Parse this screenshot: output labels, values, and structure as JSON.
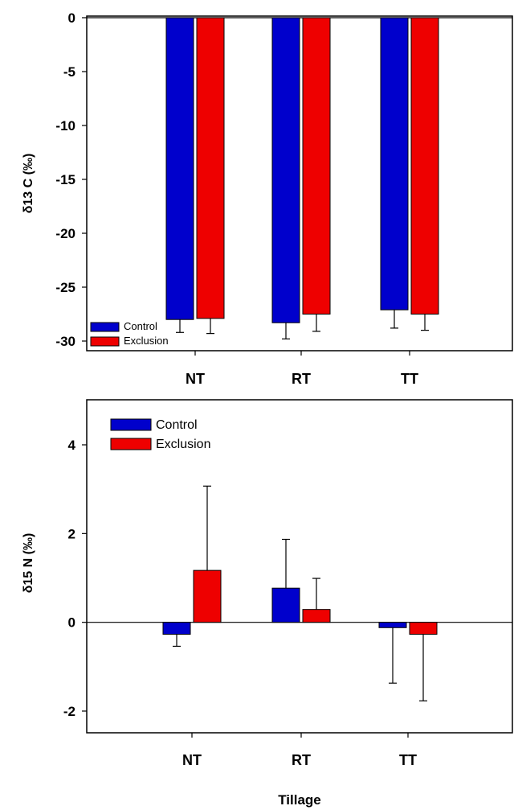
{
  "chart_data": [
    {
      "type": "bar",
      "ylabel": "δ13 C (‰)",
      "xlabel": "",
      "categories": [
        "NT",
        "RT",
        "TT"
      ],
      "ylim": [
        -31,
        0
      ],
      "yticks": [
        0,
        -5,
        -10,
        -15,
        -20,
        -25,
        -30
      ],
      "legend_position": "bottom-left",
      "series": [
        {
          "name": "Control",
          "color": "#0000cc",
          "values": [
            -28.0,
            -28.3,
            -27.1
          ],
          "errors": [
            1.2,
            1.5,
            1.7
          ]
        },
        {
          "name": "Exclusion",
          "color": "#ee0000",
          "values": [
            -27.9,
            -27.5,
            -27.5
          ],
          "errors": [
            1.4,
            1.6,
            1.5
          ]
        }
      ]
    },
    {
      "type": "bar",
      "ylabel": "δ15 N (‰)",
      "xlabel": "Tillage",
      "categories": [
        "NT",
        "RT",
        "TT"
      ],
      "ylim": [
        -2.5,
        5.0
      ],
      "yticks": [
        4,
        2,
        0,
        -2
      ],
      "legend_position": "top-left",
      "series": [
        {
          "name": "Control",
          "color": "#0000cc",
          "values": [
            -0.27,
            0.77,
            -0.12
          ],
          "errors": [
            0.27,
            1.1,
            1.25
          ]
        },
        {
          "name": "Exclusion",
          "color": "#ee0000",
          "values": [
            1.17,
            0.29,
            -0.27
          ],
          "errors": [
            1.9,
            0.7,
            1.5
          ]
        }
      ]
    }
  ]
}
